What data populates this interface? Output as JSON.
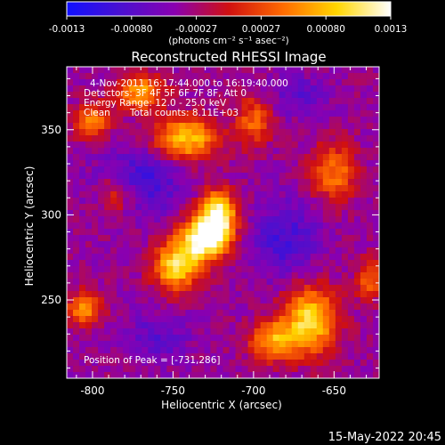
{
  "chart_data": {
    "type": "heatmap",
    "title": "Reconstructed RHESSI Image",
    "xlabel": "Heliocentric X (arcsec)",
    "ylabel": "Heliocentric Y (arcsec)",
    "x_ticks": [
      -800,
      -750,
      -700,
      -650
    ],
    "y_ticks": [
      250,
      300,
      350
    ],
    "xlim": [
      -816,
      -622
    ],
    "ylim": [
      204,
      387
    ],
    "colorbar": {
      "ticks": [
        "-0.0013",
        "-0.00080",
        "-0.00027",
        "0.00027",
        "0.00080",
        "0.0013"
      ],
      "range": [
        -0.0013,
        0.0013
      ],
      "unit_label": "(photons cm⁻² s⁻¹ asec⁻²)",
      "colors": [
        "#1010ff",
        "#4a10d0",
        "#8a00b0",
        "#d01010",
        "#ff6a00",
        "#ffd600",
        "#ffffff"
      ]
    },
    "annotations": [
      "4-Nov-2011 16:17:44.000 to 16:19:40.000",
      "Detectors: 3F 4F 5F 6F 7F 8F, Att 0",
      "Energy Range: 12.0 - 25.0 keV",
      "Clean",
      "Total counts: 8.11E+03",
      "Position of Peak = [-731,286]"
    ],
    "peak": {
      "x": -731,
      "y": 286
    },
    "sources": [
      {
        "x": -731,
        "y": 286,
        "amp": 1.0,
        "sx": 10,
        "sy": 9
      },
      {
        "x": -722,
        "y": 300,
        "amp": 0.9,
        "sx": 8,
        "sy": 10
      },
      {
        "x": -748,
        "y": 270,
        "amp": 0.8,
        "sx": 10,
        "sy": 10
      },
      {
        "x": -742,
        "y": 345,
        "amp": 0.75,
        "sx": 14,
        "sy": 9
      },
      {
        "x": -770,
        "y": 372,
        "amp": 0.65,
        "sx": 10,
        "sy": 7
      },
      {
        "x": -665,
        "y": 238,
        "amp": 0.8,
        "sx": 12,
        "sy": 14
      },
      {
        "x": -688,
        "y": 226,
        "amp": 0.6,
        "sx": 10,
        "sy": 8
      },
      {
        "x": -800,
        "y": 355,
        "amp": 0.5,
        "sx": 8,
        "sy": 8
      },
      {
        "x": -805,
        "y": 245,
        "amp": 0.55,
        "sx": 8,
        "sy": 7
      },
      {
        "x": -785,
        "y": 312,
        "amp": 0.4,
        "sx": 8,
        "sy": 8
      },
      {
        "x": -650,
        "y": 325,
        "amp": 0.5,
        "sx": 10,
        "sy": 12
      },
      {
        "x": -700,
        "y": 355,
        "amp": 0.45,
        "sx": 8,
        "sy": 10
      },
      {
        "x": -628,
        "y": 262,
        "amp": 0.45,
        "sx": 6,
        "sy": 8
      }
    ],
    "cold_regions": [
      {
        "x": -770,
        "y": 320,
        "amp": 0.9,
        "sx": 18,
        "sy": 14
      },
      {
        "x": -680,
        "y": 285,
        "amp": 0.85,
        "sx": 14,
        "sy": 16
      },
      {
        "x": -760,
        "y": 228,
        "amp": 0.6,
        "sx": 14,
        "sy": 10
      },
      {
        "x": -672,
        "y": 370,
        "amp": 0.6,
        "sx": 12,
        "sy": 8
      }
    ]
  },
  "footer": {
    "date": "15-May-2022 20:45"
  }
}
